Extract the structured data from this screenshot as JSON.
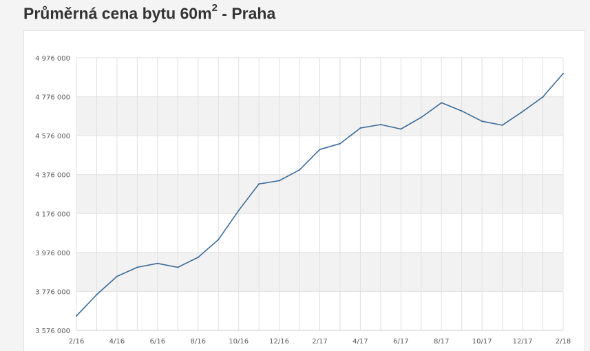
{
  "title": {
    "main": "Průměrná cena bytu 60m",
    "sup": "2",
    "suffix": " - Praha"
  },
  "chart_data": {
    "type": "line",
    "title": "Průměrná cena bytu 60m2 - Praha",
    "xlabel": "",
    "ylabel": "",
    "x_tick_labels": [
      "2/16",
      "4/16",
      "6/16",
      "8/16",
      "10/16",
      "12/16",
      "2/17",
      "4/17",
      "6/17",
      "8/17",
      "10/17",
      "12/17",
      "2/18"
    ],
    "x": [
      "2/16",
      "3/16",
      "4/16",
      "5/16",
      "6/16",
      "7/16",
      "8/16",
      "9/16",
      "10/16",
      "11/16",
      "12/16",
      "1/17",
      "2/17",
      "3/17",
      "4/17",
      "5/17",
      "6/17",
      "7/17",
      "8/17",
      "9/17",
      "10/17",
      "11/17",
      "12/17",
      "1/18",
      "2/18"
    ],
    "series": [
      {
        "values": [
          3650000,
          3760000,
          3853000,
          3900000,
          3920000,
          3900000,
          3951000,
          4042000,
          4192000,
          4328000,
          4345000,
          4400000,
          4505000,
          4535000,
          4615000,
          4633000,
          4610000,
          4670000,
          4745000,
          4703000,
          4650000,
          4630000,
          4700000,
          4775000,
          4895000
        ],
        "color": "#3a6a9a"
      }
    ],
    "y_ticks": [
      3576000,
      3776000,
      3976000,
      4176000,
      4376000,
      4576000,
      4776000,
      4976000
    ],
    "y_tick_labels": [
      "3 576 000",
      "3 776 000",
      "3 976 000",
      "4 176 000",
      "4 376 000",
      "4 576 000",
      "4 776 000",
      "4 976 000"
    ],
    "ylim": [
      3576000,
      4976000
    ],
    "grid": true,
    "band_fill": "#f2f2f2",
    "grid_color": "#e0e0e0"
  }
}
